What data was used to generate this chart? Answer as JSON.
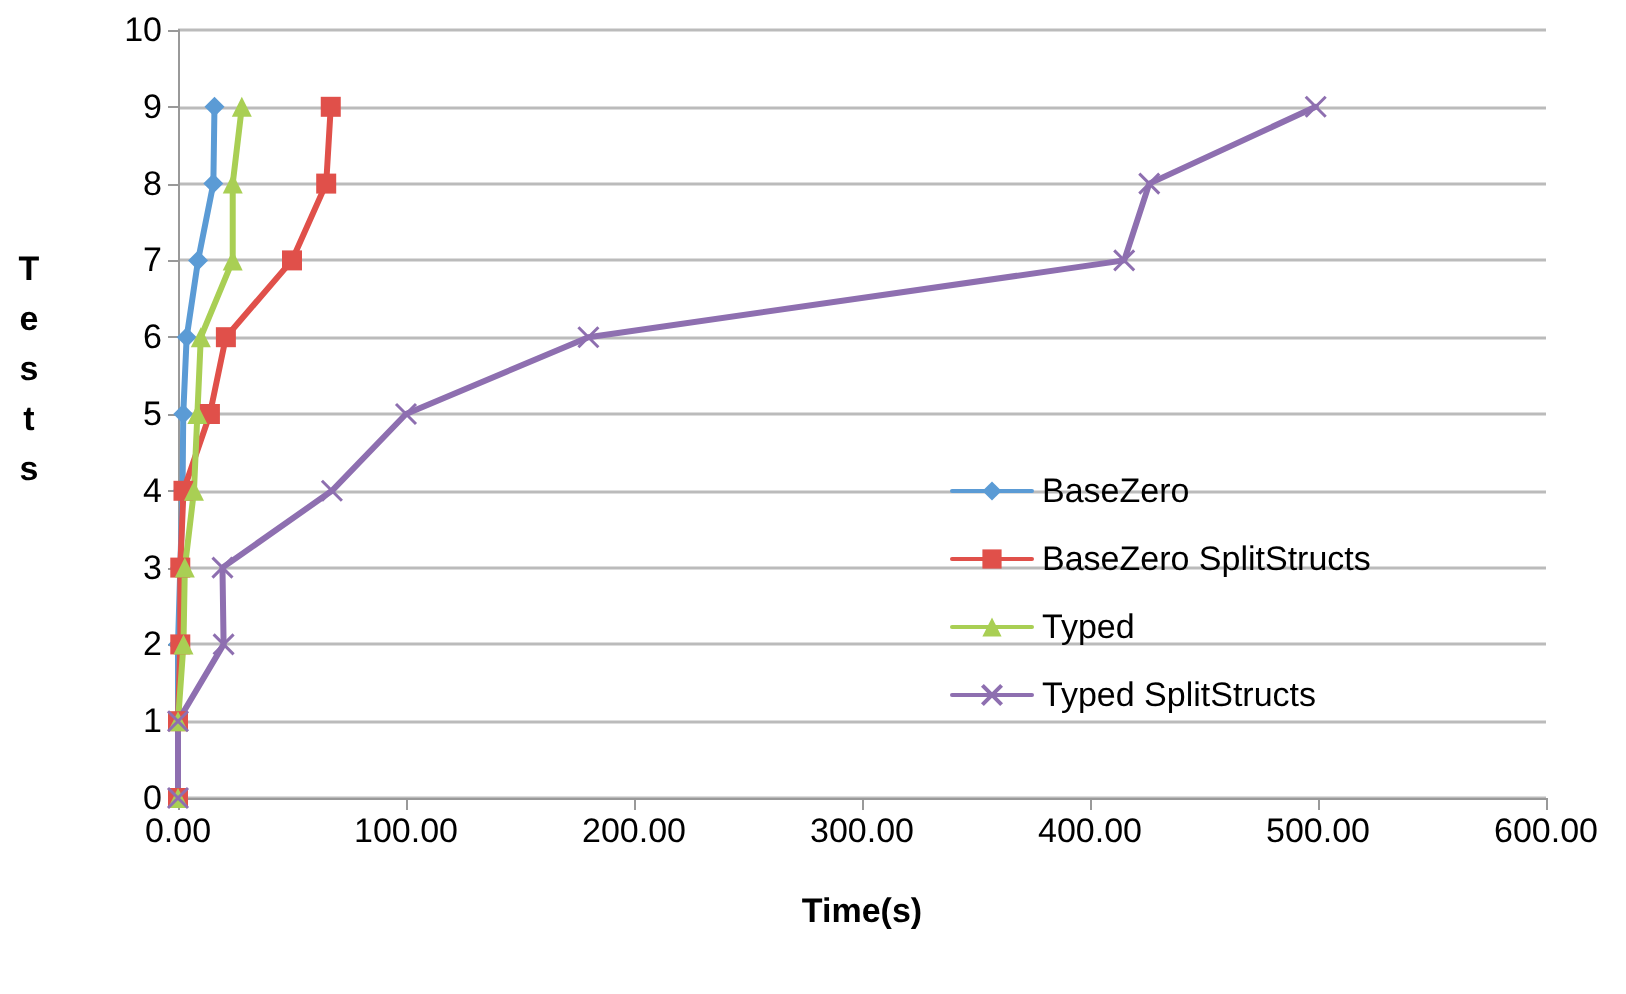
{
  "chart_data": {
    "type": "line",
    "xlabel": "Time(s)",
    "ylabel": "Tests",
    "xlim": [
      0,
      600
    ],
    "xticks": [
      {
        "value": 0,
        "label": "0.00"
      },
      {
        "value": 100,
        "label": "100.00"
      },
      {
        "value": 200,
        "label": "200.00"
      },
      {
        "value": 300,
        "label": "300.00"
      },
      {
        "value": 400,
        "label": "400.00"
      },
      {
        "value": 500,
        "label": "500.00"
      },
      {
        "value": 600,
        "label": "600.00"
      }
    ],
    "ylim": [
      0,
      10
    ],
    "yticks": [
      0,
      1,
      2,
      3,
      4,
      5,
      6,
      7,
      8,
      9,
      10
    ],
    "grid": "y",
    "legend": "right",
    "line_style": "solid",
    "series": [
      {
        "name": "BaseZero",
        "color": "#5b9bd5",
        "marker": "diamond",
        "x": [
          0,
          0,
          0,
          1,
          2,
          2.3,
          3.8,
          8.8,
          15.5,
          16
        ],
        "values": [
          0,
          1,
          2,
          3,
          4,
          5,
          6,
          7,
          8,
          9
        ]
      },
      {
        "name": "BaseZero SplitStructs",
        "color": "#e0504a",
        "marker": "square",
        "x": [
          0,
          0,
          1,
          1,
          2.4,
          14,
          21,
          50,
          65,
          67
        ],
        "values": [
          0,
          1,
          2,
          3,
          4,
          5,
          6,
          7,
          8,
          9
        ]
      },
      {
        "name": "Typed",
        "color": "#a9cf54",
        "marker": "triangle",
        "x": [
          0,
          0,
          2.4,
          3,
          7,
          8.5,
          10,
          24,
          24,
          28
        ],
        "values": [
          0,
          1,
          2,
          3,
          4,
          5,
          6,
          7,
          8,
          9
        ]
      },
      {
        "name": "Typed SplitStructs",
        "color": "#8e6fb0",
        "marker": "cross",
        "x": [
          0,
          0,
          20,
          19.5,
          67.5,
          100,
          180,
          415,
          426,
          499
        ],
        "values": [
          0,
          1,
          2,
          3,
          4,
          5,
          6,
          7,
          8,
          9
        ]
      }
    ]
  }
}
